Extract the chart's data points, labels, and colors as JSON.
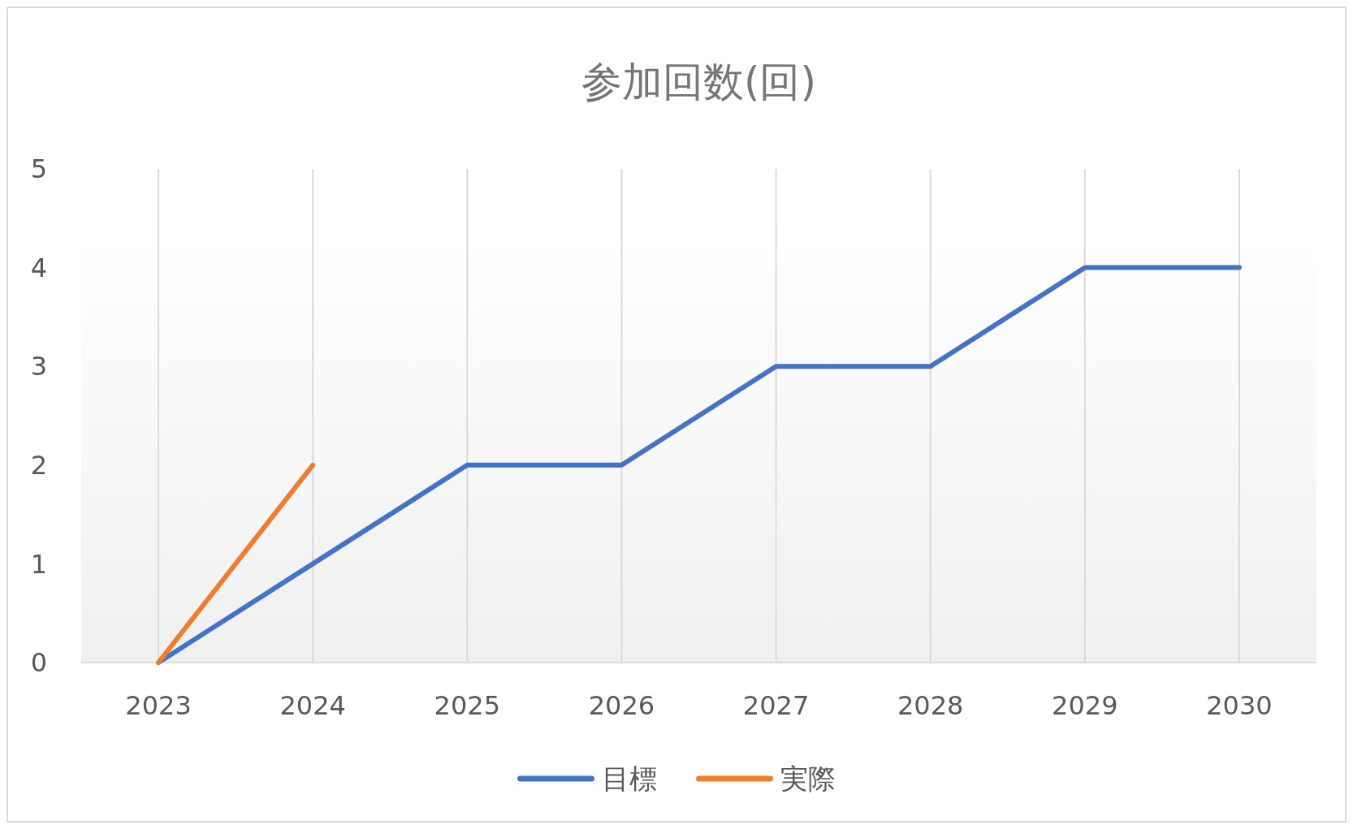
{
  "chart_data": {
    "type": "line",
    "title": "参加回数(回)",
    "categories": [
      "2023",
      "2024",
      "2025",
      "2026",
      "2027",
      "2028",
      "2029",
      "2030"
    ],
    "series": [
      {
        "name": "目標",
        "color": "#4472c4",
        "values": [
          0,
          1,
          2,
          2,
          3,
          3,
          4,
          4
        ]
      },
      {
        "name": "実際",
        "color": "#ed7d31",
        "values": [
          0,
          2,
          null,
          null,
          null,
          null,
          null,
          null
        ]
      }
    ],
    "ylim": [
      0,
      5
    ],
    "yticks": [
      0,
      1,
      2,
      3,
      4,
      5
    ],
    "grid": "x",
    "legend": "bottom",
    "marker": "none",
    "line_style": "solid"
  }
}
